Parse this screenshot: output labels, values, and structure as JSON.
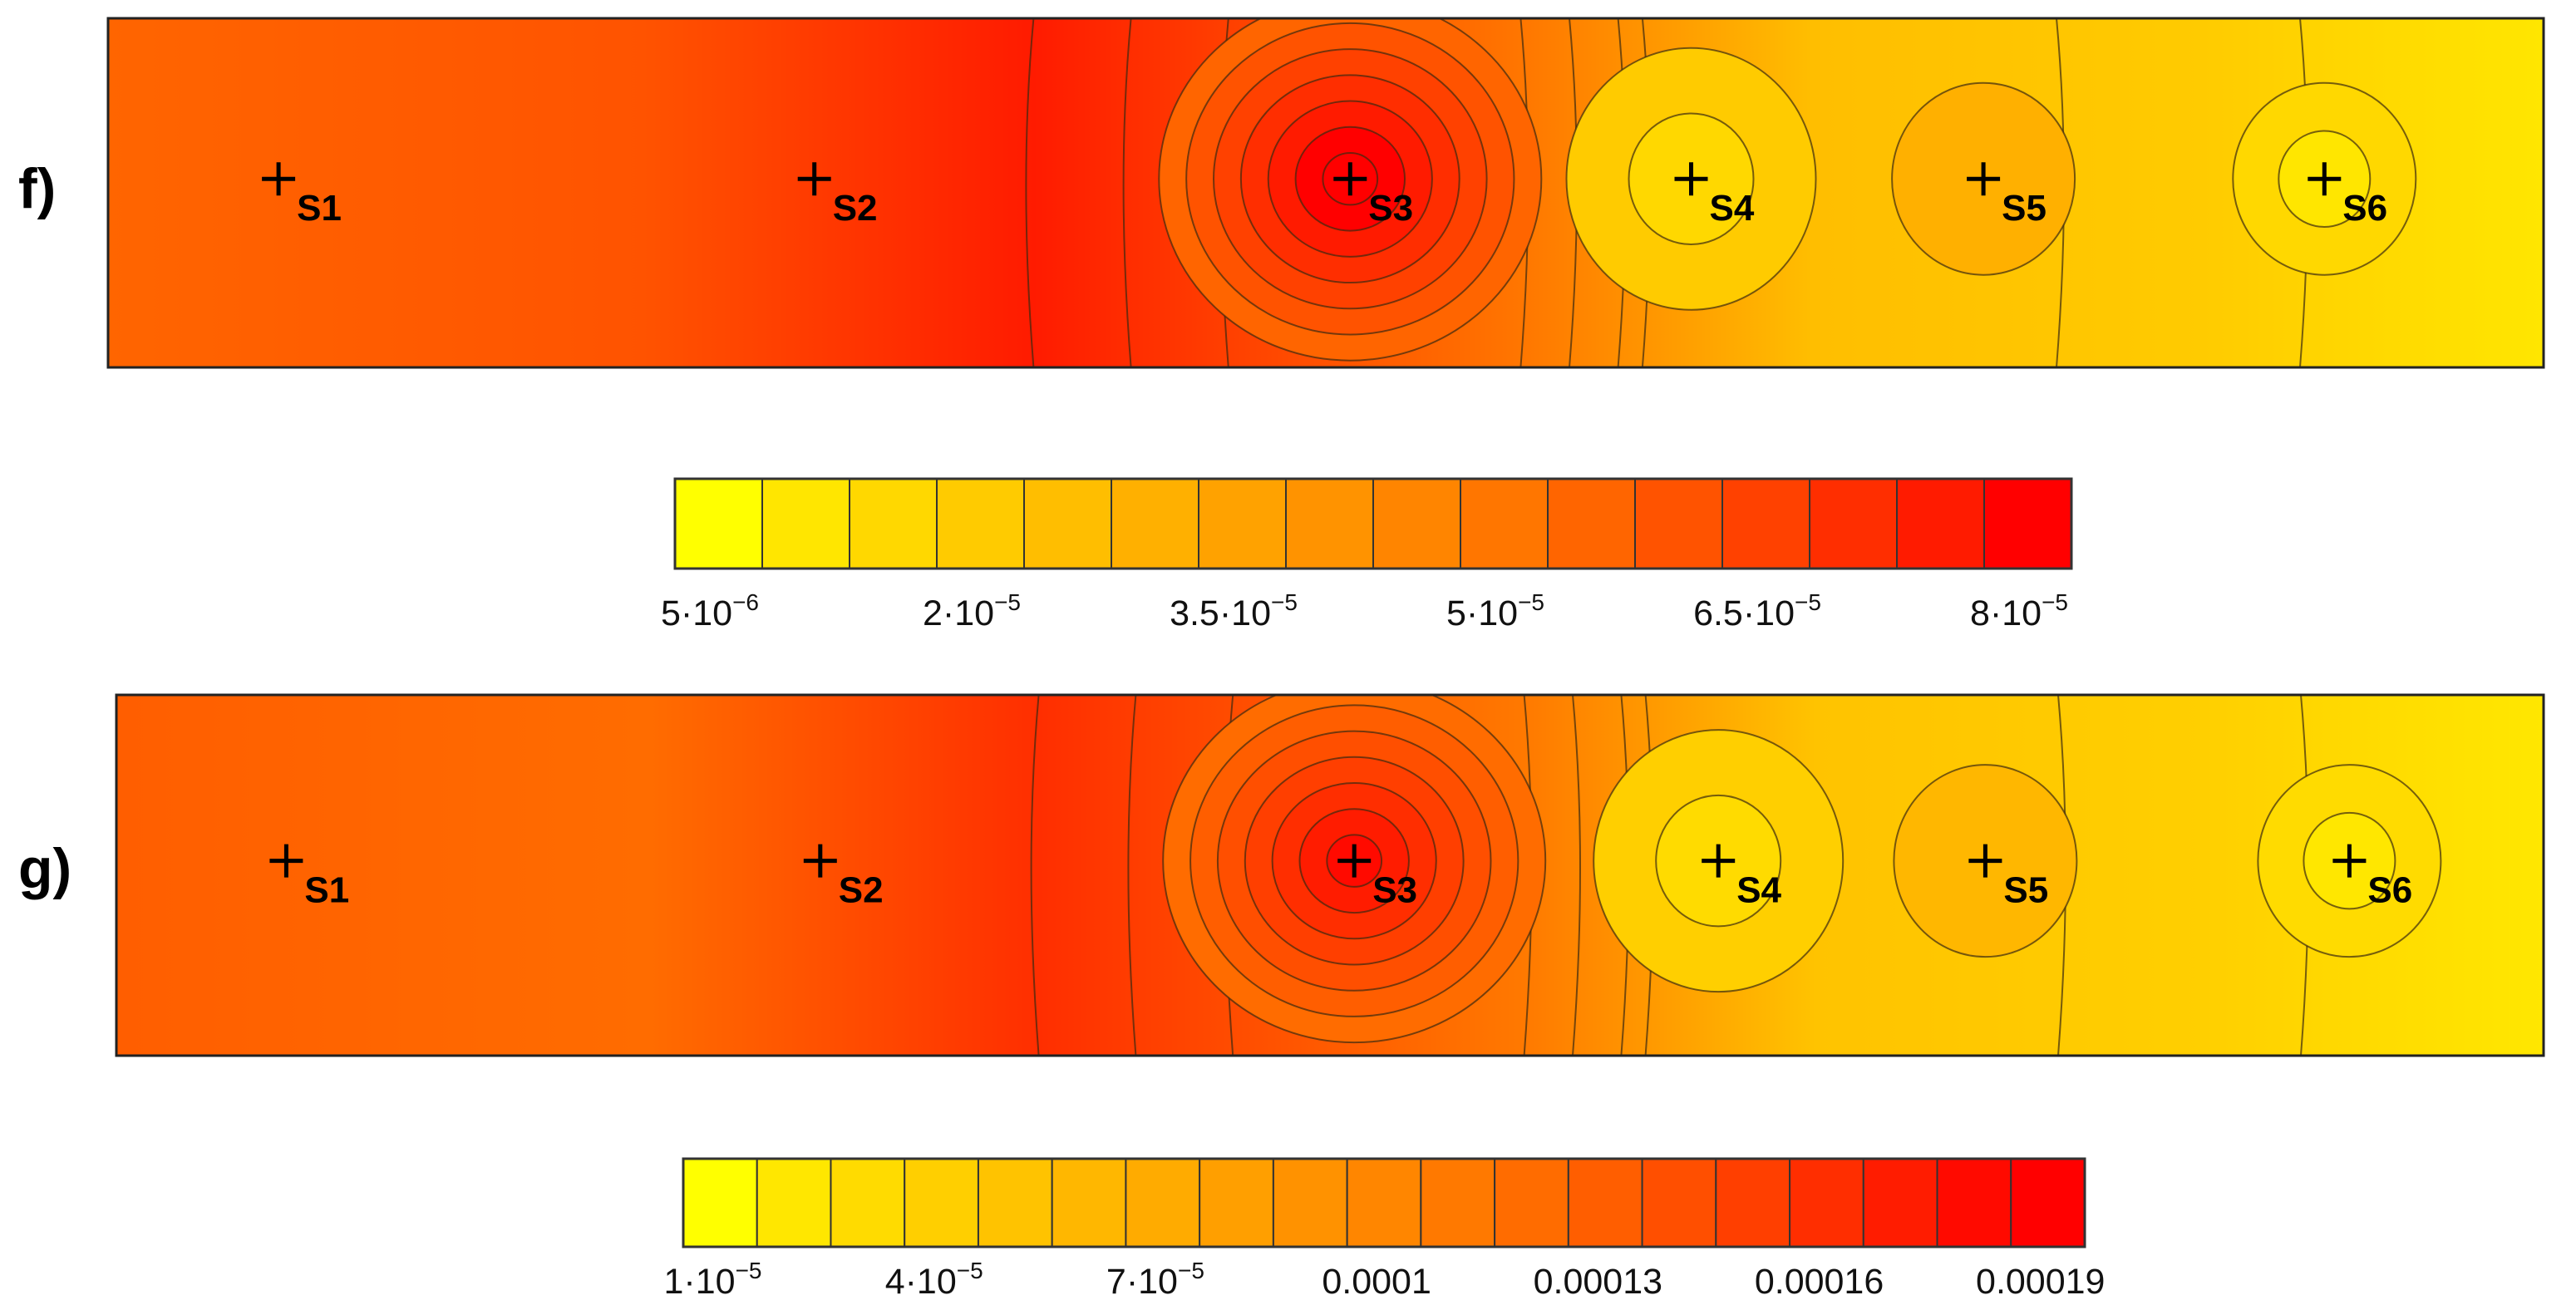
{
  "chart_data": [
    {
      "type": "contour",
      "panel": "f)",
      "sources": [
        {
          "label": "S1",
          "x": 0.07,
          "level": 10
        },
        {
          "label": "S2",
          "x": 0.29,
          "level": 11
        },
        {
          "label": "S3",
          "x": 0.51,
          "level": 16
        },
        {
          "label": "S4",
          "x": 0.65,
          "level": 2
        },
        {
          "label": "S5",
          "x": 0.77,
          "level": 5
        },
        {
          "label": "S6",
          "x": 0.91,
          "level": 1
        }
      ],
      "colorbar": {
        "colors": [
          "#ffff00",
          "#ffe600",
          "#ffd800",
          "#ffcb00",
          "#ffbe00",
          "#ffb000",
          "#ffa200",
          "#ff9300",
          "#ff8500",
          "#ff7600",
          "#ff6500",
          "#ff5300",
          "#ff4100",
          "#ff2e00",
          "#ff1b00",
          "#ff0000"
        ],
        "min": 5e-06,
        "step": 5e-06,
        "tick_labels": [
          {
            "text": "5·10",
            "exp": "−6",
            "boundary": 1
          },
          {
            "text": "2·10",
            "exp": "−5",
            "boundary": 4
          },
          {
            "text": "3.5·10",
            "exp": "−5",
            "boundary": 7
          },
          {
            "text": "5·10",
            "exp": "−5",
            "boundary": 10
          },
          {
            "text": "6.5·10",
            "exp": "−5",
            "boundary": 13
          },
          {
            "text": "8·10",
            "exp": "−5",
            "boundary": 16
          }
        ]
      }
    },
    {
      "type": "contour",
      "panel": "g)",
      "sources": [
        {
          "label": "S1",
          "x": 0.07,
          "level": 12
        },
        {
          "label": "S2",
          "x": 0.29,
          "level": 11
        },
        {
          "label": "S3",
          "x": 0.51,
          "level": 18
        },
        {
          "label": "S4",
          "x": 0.66,
          "level": 2
        },
        {
          "label": "S5",
          "x": 0.77,
          "level": 5
        },
        {
          "label": "S6",
          "x": 0.92,
          "level": 1
        }
      ],
      "colorbar": {
        "colors": [
          "#ffff00",
          "#ffe700",
          "#ffdb00",
          "#ffcf00",
          "#ffc300",
          "#ffb700",
          "#ffab00",
          "#ff9f00",
          "#ff9200",
          "#ff8600",
          "#ff7900",
          "#ff6c00",
          "#ff5e00",
          "#ff4f00",
          "#ff3f00",
          "#ff2e00",
          "#ff1c00",
          "#ff0a00",
          "#ff0000"
        ],
        "min": 1e-05,
        "step": 1e-05,
        "tick_labels": [
          {
            "text": "1·10",
            "exp": "−5",
            "boundary": 1
          },
          {
            "text": "4·10",
            "exp": "−5",
            "boundary": 4
          },
          {
            "text": "7·10",
            "exp": "−5",
            "boundary": 7
          },
          {
            "text": "0.0001",
            "exp": "",
            "boundary": 10
          },
          {
            "text": "0.00013",
            "exp": "",
            "boundary": 13
          },
          {
            "text": "0.00016",
            "exp": "",
            "boundary": 16
          },
          {
            "text": "0.00019",
            "exp": "",
            "boundary": 19
          }
        ]
      }
    }
  ]
}
